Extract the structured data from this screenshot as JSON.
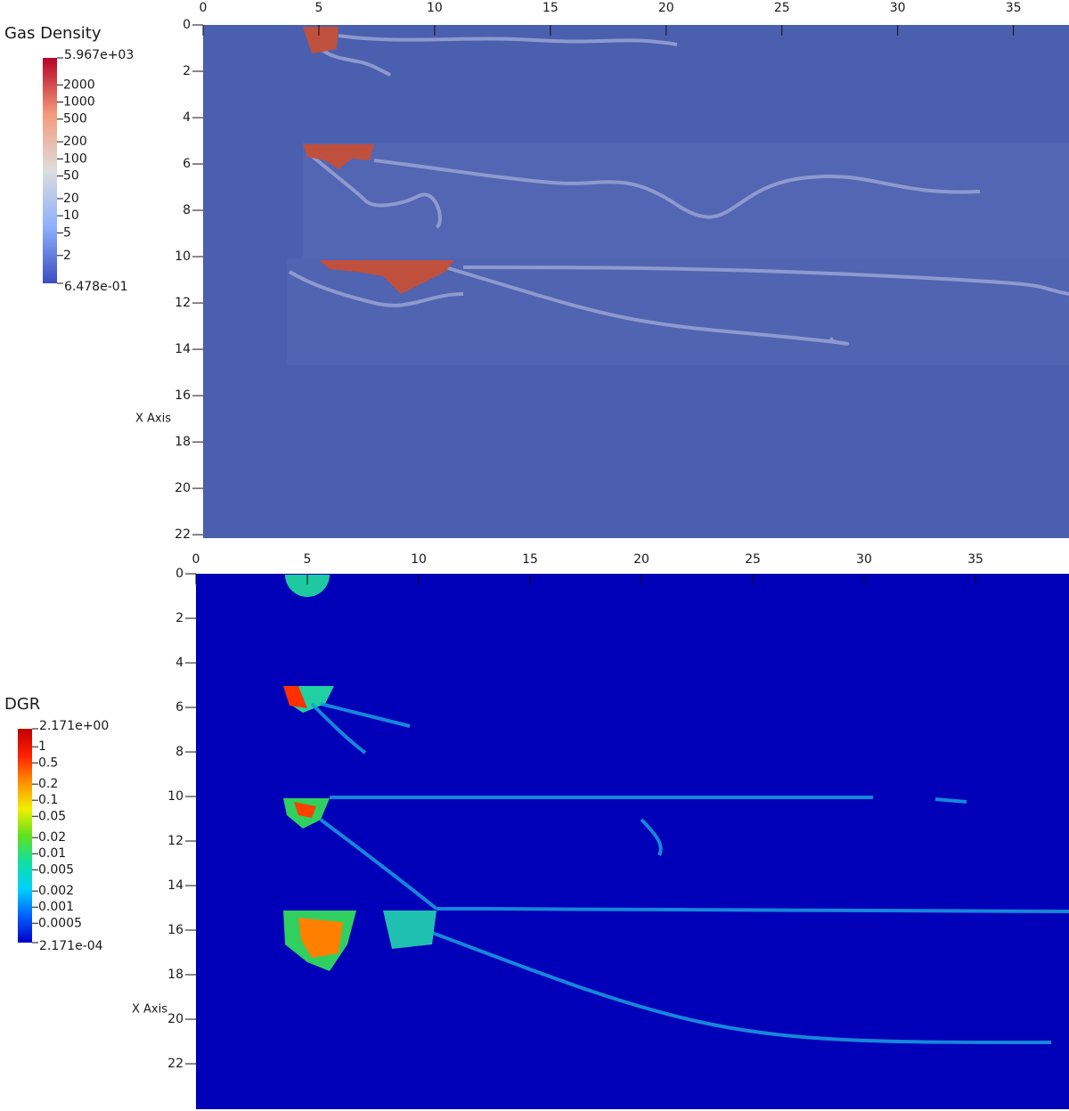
{
  "chart_data": [
    {
      "type": "heatmap",
      "title": "Gas Density",
      "y_label": "X Axis",
      "xlim": [
        0,
        37.4
      ],
      "ylim": [
        0,
        22.15
      ],
      "xticks": [
        0,
        5,
        10,
        15,
        20,
        25,
        30,
        35
      ],
      "yticks": [
        0,
        2,
        4,
        6,
        8,
        10,
        12,
        14,
        16,
        18,
        20,
        22
      ],
      "log_scale": true,
      "clim": [
        0.6478,
        5967
      ],
      "colormap": [
        "#3b4cc0",
        "#8db0fe",
        "#dddddd",
        "#f49a7b",
        "#b40426"
      ],
      "colorbar_ticks": [
        {
          "value": 5967,
          "label": "5.967e+03"
        },
        2000,
        1000,
        500,
        200,
        100,
        50,
        20,
        10,
        5,
        2,
        {
          "value": 0.6478,
          "label": "6.478e-01"
        }
      ]
    },
    {
      "type": "heatmap",
      "title": "DGR",
      "y_label": "X Axis",
      "xlim": [
        0,
        39.2
      ],
      "ylim": [
        0,
        24.04
      ],
      "xticks": [
        0,
        5,
        10,
        15,
        20,
        25,
        30,
        35
      ],
      "yticks": [
        0,
        2,
        4,
        6,
        8,
        10,
        12,
        14,
        16,
        18,
        20,
        22
      ],
      "log_scale": true,
      "clim": [
        0.0002171,
        2.171
      ],
      "colormap": [
        "#0000c8",
        "#0060ff",
        "#00d0ff",
        "#10e0a0",
        "#60e020",
        "#f0f000",
        "#ff9000",
        "#ff2000",
        "#c00000"
      ],
      "colorbar_ticks": [
        {
          "value": 2.171,
          "label": "2.171e+00"
        },
        1,
        0.5,
        0.2,
        0.1,
        0.05,
        0.02,
        0.01,
        0.005,
        0.002,
        0.001,
        0.0005,
        {
          "value": 0.0002171,
          "label": "2.171e-04"
        }
      ]
    }
  ]
}
